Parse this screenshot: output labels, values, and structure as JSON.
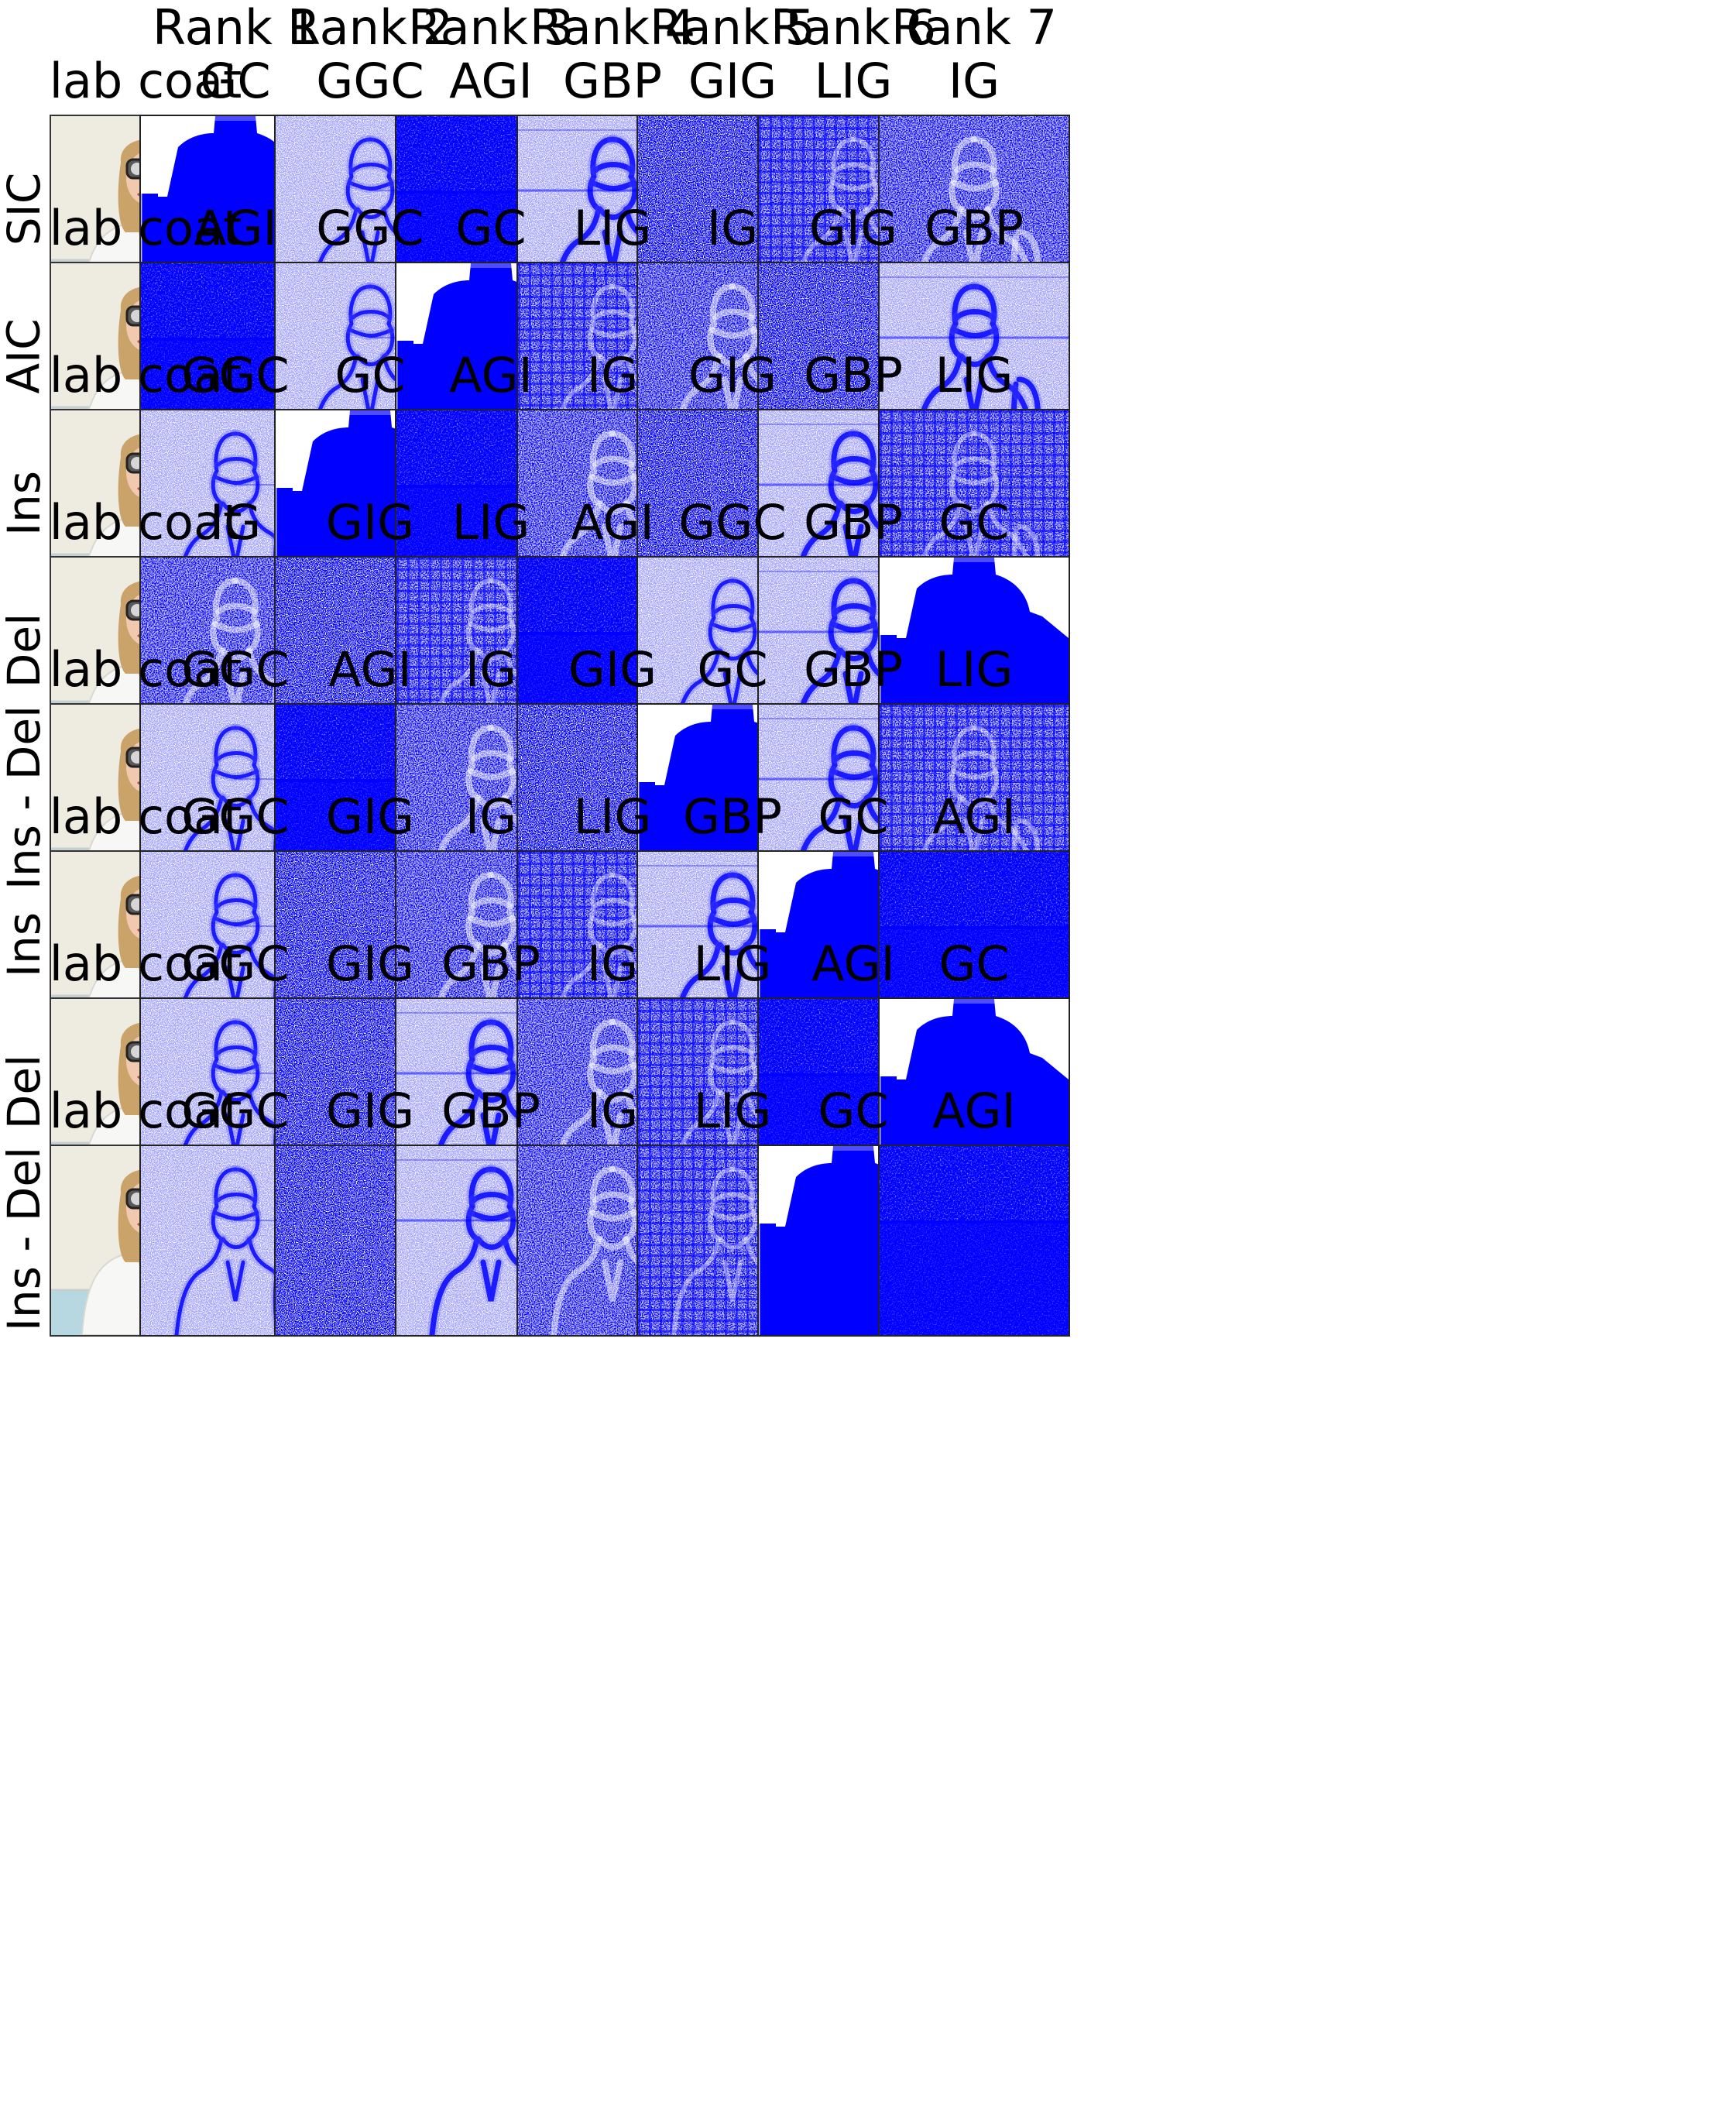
{
  "column_headers": [
    "Rank 1",
    "Rank 2",
    "Rank 3",
    "Rank 4",
    "Rank 5",
    "Rank 6",
    "Rank 7"
  ],
  "colors": {
    "saliency": "#0000ff",
    "background": "#ffffff",
    "wall": "#eeebe0",
    "floor": "#b7d8e0"
  },
  "rows": [
    {
      "label": "SIC",
      "class_label": "lab coat",
      "methods": [
        "GC",
        "GGC",
        "AGI",
        "GBP",
        "GIG",
        "LIG",
        "IG"
      ]
    },
    {
      "label": "AIC",
      "class_label": "lab coat",
      "methods": [
        "AGI",
        "GGC",
        "GC",
        "LIG",
        "IG",
        "GIG",
        "GBP"
      ]
    },
    {
      "label": "Ins",
      "class_label": "lab coat",
      "methods": [
        "GGC",
        "GC",
        "AGI",
        "IG",
        "GIG",
        "GBP",
        "LIG"
      ]
    },
    {
      "label": "Del",
      "class_label": "lab coat",
      "methods": [
        "IG",
        "GIG",
        "LIG",
        "AGI",
        "GGC",
        "GBP",
        "GC"
      ]
    },
    {
      "label": "Ins - Del",
      "class_label": "lab coat",
      "methods": [
        "GGC",
        "AGI",
        "IG",
        "GIG",
        "GC",
        "GBP",
        "LIG"
      ]
    },
    {
      "label": "Ins",
      "class_label": "lab coat",
      "methods": [
        "GGC",
        "GIG",
        "IG",
        "LIG",
        "GBP",
        "GC",
        "AGI"
      ]
    },
    {
      "label": "Del",
      "class_label": "lab coat",
      "methods": [
        "GGC",
        "GIG",
        "GBP",
        "IG",
        "LIG",
        "AGI",
        "GC"
      ]
    },
    {
      "label": "Ins - Del",
      "class_label": "lab coat",
      "methods": [
        "GGC",
        "GIG",
        "GBP",
        "IG",
        "LIG",
        "GC",
        "AGI"
      ]
    }
  ]
}
